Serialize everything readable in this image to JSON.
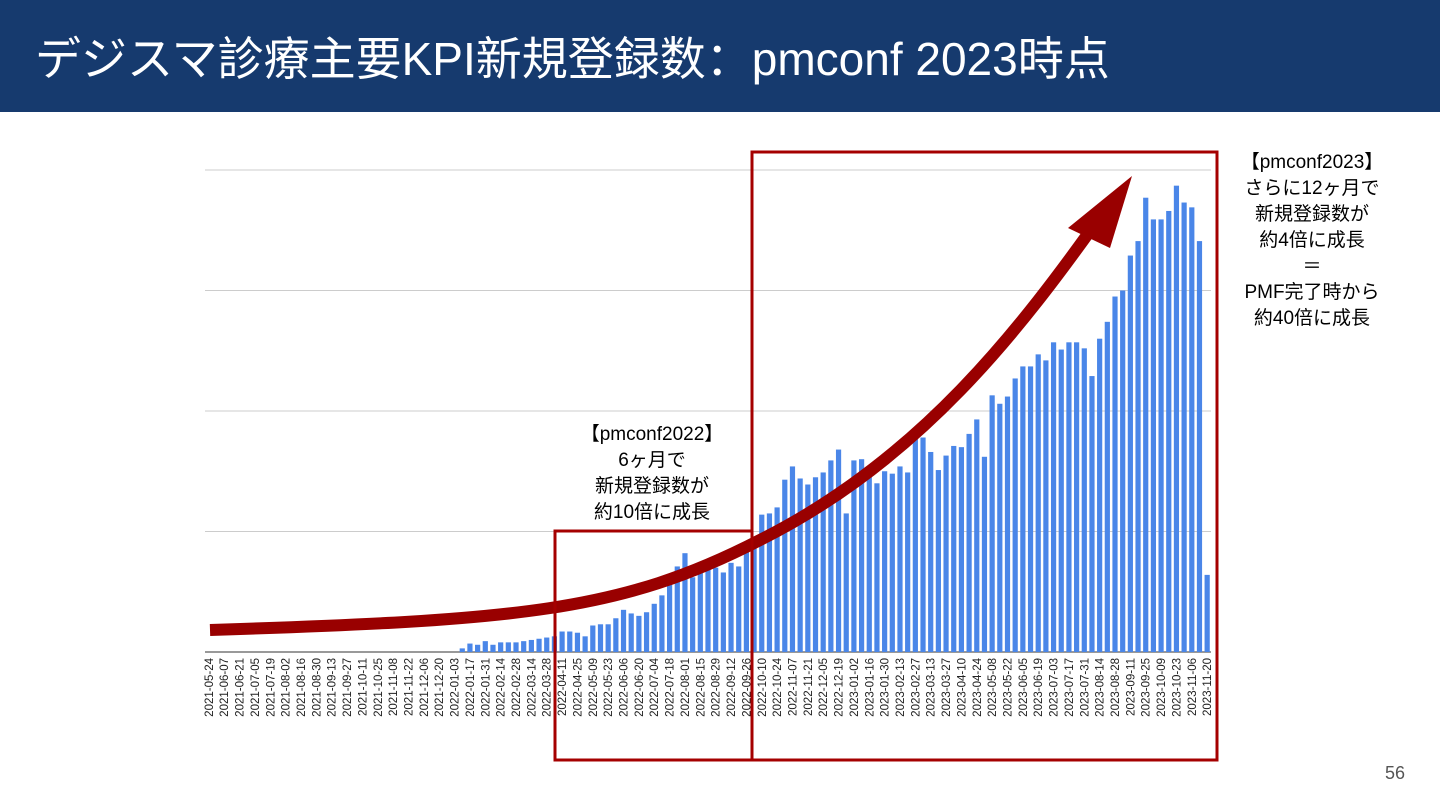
{
  "header": {
    "title": "デジスマ診療主要KPI新規登録数：pmconf 2023時点"
  },
  "page_number": "56",
  "chart_data": {
    "type": "bar",
    "color": "#4a86e8",
    "grid": true,
    "ylim": [
      0,
      4
    ],
    "yticks": [
      0,
      1,
      2,
      3,
      4
    ],
    "annotations": [
      {
        "lines": [
          "【pmconf2022】",
          "6ヶ月で",
          "新規登録数が",
          "約10倍に成長"
        ]
      },
      {
        "lines": [
          "【pmconf2023】",
          "さらに12ヶ月で",
          "新規登録数が",
          "約4倍に成長",
          "＝",
          "PMF完了時から",
          "約40倍に成長"
        ]
      }
    ],
    "categories": [
      "2021-05-24",
      null,
      "2021-06-07",
      null,
      "2021-06-21",
      null,
      "2021-07-05",
      null,
      "2021-07-19",
      null,
      "2021-08-02",
      null,
      "2021-08-16",
      null,
      "2021-08-30",
      null,
      "2021-09-13",
      null,
      "2021-09-27",
      null,
      "2021-10-11",
      null,
      "2021-10-25",
      null,
      "2021-11-08",
      null,
      "2021-11-22",
      null,
      "2021-12-06",
      null,
      "2021-12-20",
      null,
      "2022-01-03",
      null,
      "2022-01-17",
      null,
      "2022-01-31",
      null,
      "2022-02-14",
      null,
      "2022-02-28",
      null,
      "2022-03-14",
      null,
      "2022-03-28",
      null,
      "2022-04-11",
      null,
      "2022-04-25",
      null,
      "2022-05-09",
      null,
      "2022-05-23",
      null,
      "2022-06-06",
      null,
      "2022-06-20",
      null,
      "2022-07-04",
      null,
      "2022-07-18",
      null,
      "2022-08-01",
      null,
      "2022-08-15",
      null,
      "2022-08-29",
      null,
      "2022-09-12",
      null,
      "2022-09-26",
      null,
      "2022-10-10",
      null,
      "2022-10-24",
      null,
      "2022-11-07",
      null,
      "2022-11-21",
      null,
      "2022-12-05",
      null,
      "2022-12-19",
      null,
      "2023-01-02",
      null,
      "2023-01-16",
      null,
      "2023-01-30",
      null,
      "2023-02-13",
      null,
      "2023-02-27",
      null,
      "2023-03-13",
      null,
      "2023-03-27",
      null,
      "2023-04-10",
      null,
      "2023-04-24",
      null,
      "2023-05-08",
      null,
      "2023-05-22",
      null,
      "2023-06-05",
      null,
      "2023-06-19",
      null,
      "2023-07-03",
      null,
      "2023-07-17",
      null,
      "2023-07-31",
      null,
      "2023-08-14",
      null,
      "2023-08-28",
      null,
      "2023-09-11",
      null,
      "2023-09-25",
      null,
      "2023-10-09",
      null,
      "2023-10-23",
      null,
      "2023-11-06",
      null,
      "2023-11-20"
    ],
    "values": [
      0,
      0,
      0,
      0,
      0,
      0,
      0,
      0,
      0,
      0,
      0,
      0,
      0,
      0,
      0,
      0,
      0,
      0,
      0,
      0,
      0,
      0,
      0,
      0,
      0,
      0,
      0,
      0,
      0,
      0,
      0,
      0,
      0,
      0.03,
      0.07,
      0.06,
      0.09,
      0.06,
      0.08,
      0.08,
      0.08,
      0.09,
      0.1,
      0.11,
      0.12,
      0.13,
      0.17,
      0.17,
      0.16,
      0.13,
      0.22,
      0.23,
      0.23,
      0.28,
      0.35,
      0.32,
      0.3,
      0.33,
      0.4,
      0.47,
      0.56,
      0.71,
      0.82,
      0.62,
      0.66,
      0.71,
      0.7,
      0.66,
      0.74,
      0.71,
      0.89,
      0.95,
      1.14,
      1.15,
      1.2,
      1.43,
      1.54,
      1.44,
      1.39,
      1.45,
      1.49,
      1.59,
      1.68,
      1.15,
      1.59,
      1.6,
      1.53,
      1.4,
      1.5,
      1.48,
      1.54,
      1.49,
      1.78,
      1.78,
      1.66,
      1.51,
      1.63,
      1.71,
      1.7,
      1.81,
      1.93,
      1.62,
      2.13,
      2.06,
      2.12,
      2.27,
      2.37,
      2.37,
      2.47,
      2.42,
      2.57,
      2.51,
      2.57,
      2.57,
      2.52,
      2.29,
      2.6,
      2.74,
      2.95,
      3.0,
      3.29,
      3.41,
      3.77,
      3.59,
      3.59,
      3.66,
      3.87,
      3.73,
      3.69,
      3.41,
      0.64
    ]
  }
}
